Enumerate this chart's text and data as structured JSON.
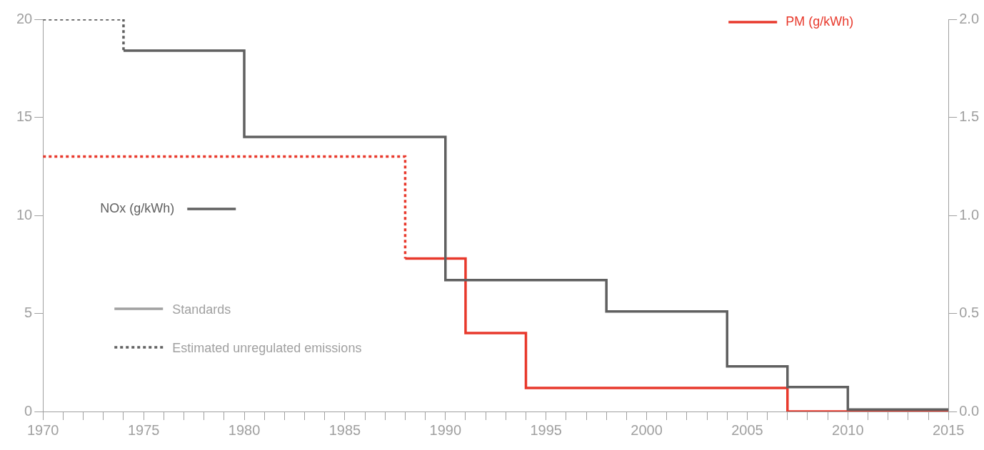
{
  "chart_data": {
    "type": "step",
    "series": [
      {
        "name": "NOx (g/kWh)",
        "color": "#606060",
        "line_style": "solid",
        "x": [
          1974,
          1980,
          1990,
          1998,
          2004,
          2007,
          2010,
          2015
        ],
        "values": [
          18.4,
          14,
          6.7,
          5.1,
          2.3,
          1.25,
          0.1,
          0.1
        ]
      },
      {
        "color": "#606060",
        "line_style": "dotted",
        "x": [
          1970,
          1974,
          1974
        ],
        "values": [
          20,
          20,
          18.4
        ]
      },
      {
        "name": "PM (g/kWh)",
        "color": "#e8392c",
        "line_style": "solid",
        "axis": "y2",
        "x": [
          1988,
          1991,
          1994,
          2007,
          2015
        ],
        "values": [
          0.78,
          0.4,
          0.12,
          0,
          0
        ]
      },
      {
        "color": "#e8392c",
        "line_style": "dotted",
        "axis": "y2",
        "x": [
          1970,
          1988,
          1988
        ],
        "values": [
          1.3,
          1.3,
          0.78
        ]
      }
    ],
    "xlim": [
      1970,
      2015
    ],
    "xticks": [
      1970,
      {
        "value": 1971,
        "label": null
      },
      {
        "value": 1972,
        "label": null
      },
      {
        "value": 1973,
        "label": null
      },
      {
        "value": 1974,
        "label": null
      },
      1975,
      {
        "value": 1976,
        "label": null
      },
      {
        "value": 1977,
        "label": null
      },
      {
        "value": 1978,
        "label": null
      },
      {
        "value": 1979,
        "label": null
      },
      1980,
      {
        "value": 1981,
        "label": null
      },
      {
        "value": 1982,
        "label": null
      },
      {
        "value": 1983,
        "label": null
      },
      {
        "value": 1984,
        "label": null
      },
      1985,
      {
        "value": 1986,
        "label": null
      },
      {
        "value": 1987,
        "label": null
      },
      {
        "value": 1988,
        "label": null
      },
      {
        "value": 1989,
        "label": null
      },
      1990,
      {
        "value": 1991,
        "label": null
      },
      {
        "value": 1992,
        "label": null
      },
      {
        "value": 1993,
        "label": null
      },
      {
        "value": 1994,
        "label": null
      },
      1995,
      {
        "value": 1996,
        "label": null
      },
      {
        "value": 1997,
        "label": null
      },
      {
        "value": 1998,
        "label": null
      },
      {
        "value": 1999,
        "label": null
      },
      2000,
      {
        "value": 2001,
        "label": null
      },
      {
        "value": 2002,
        "label": null
      },
      {
        "value": 2003,
        "label": null
      },
      {
        "value": 2004,
        "label": null
      },
      2005,
      {
        "value": 2006,
        "label": null
      },
      {
        "value": 2007,
        "label": null
      },
      {
        "value": 2008,
        "label": null
      },
      {
        "value": 2009,
        "label": null
      },
      2010,
      {
        "value": 2011,
        "label": null
      },
      {
        "value": 2012,
        "label": null
      },
      {
        "value": 2013,
        "label": null
      },
      {
        "value": 2014,
        "label": null
      },
      2015
    ],
    "ylim": [
      0,
      20
    ],
    "yticks": [
      0,
      5,
      10,
      15,
      20
    ],
    "y2lim": [
      0,
      2
    ],
    "y2ticks": [
      {
        "value": 0,
        "label": "0.0"
      },
      {
        "value": 0.5,
        "label": "0.5"
      },
      {
        "value": 1,
        "label": "1.0"
      },
      {
        "value": 1.5,
        "label": "1.5"
      },
      {
        "value": 2,
        "label": "2.0"
      }
    ],
    "grid": false,
    "annotations": [
      "Standards",
      "Estimated unregulated emissions"
    ]
  }
}
